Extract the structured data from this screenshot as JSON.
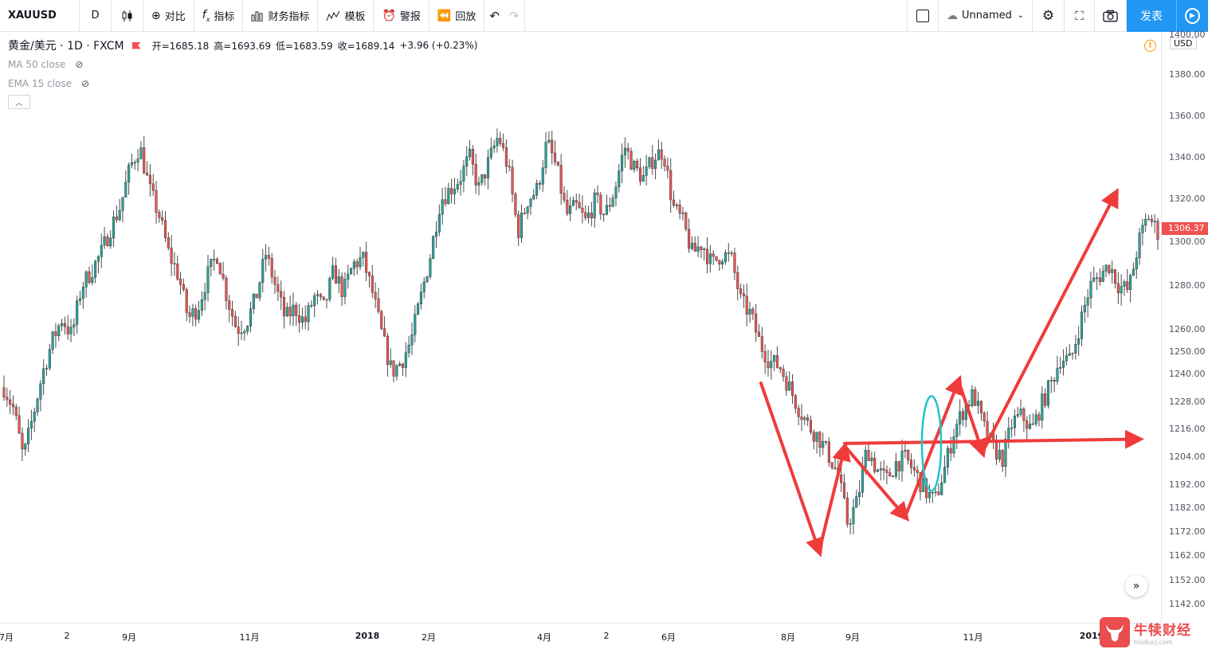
{
  "toolbar": {
    "symbol": "XAUUSD",
    "interval": "D",
    "compare": "对比",
    "indicators": "指标",
    "financials": "财务指标",
    "templates": "模板",
    "alerts": "警报",
    "replay": "回放",
    "layout_name": "Unnamed",
    "publish": "发表"
  },
  "legend": {
    "title": "黄金/美元 · 1D · FXCM",
    "open": "开=1685.18",
    "high": "高=1693.69",
    "low": "低=1683.59",
    "close": "收=1689.14",
    "change": "+3.96 (+0.23%)",
    "indicator_1": "MA 50 close",
    "indicator_2": "EMA 15 close"
  },
  "price_axis": {
    "currency": "USD",
    "ticks": [
      "1400.00",
      "1380.00",
      "1360.00",
      "1340.00",
      "1320.00",
      "1300.00",
      "1280.00",
      "1260.00",
      "1250.00",
      "1240.00",
      "1228.00",
      "1216.00",
      "1204.00",
      "1192.00",
      "1182.00",
      "1172.00",
      "1162.00",
      "1152.00",
      "1142.00"
    ],
    "current_price": "1306.37"
  },
  "time_axis": {
    "labels": [
      {
        "text": "7月",
        "bold": false
      },
      {
        "text": "2",
        "bold": false
      },
      {
        "text": "9月",
        "bold": false
      },
      {
        "text": "11月",
        "bold": false
      },
      {
        "text": "2018",
        "bold": true
      },
      {
        "text": "2月",
        "bold": false
      },
      {
        "text": "4月",
        "bold": false
      },
      {
        "text": "2",
        "bold": false
      },
      {
        "text": "6月",
        "bold": false
      },
      {
        "text": "8月",
        "bold": false
      },
      {
        "text": "9月",
        "bold": false
      },
      {
        "text": "11月",
        "bold": false
      },
      {
        "text": "2019",
        "bold": true
      }
    ]
  },
  "watermark": {
    "name": "牛犊财经",
    "sub": "niuducj.com"
  },
  "chart_data": {
    "type": "candlestick",
    "symbol": "XAUUSD",
    "ylim": [
      1138,
      1402
    ],
    "up_color": "#26a69a",
    "down_color": "#ef5350",
    "anchors": [
      1238,
      1228,
      1205,
      1225,
      1245,
      1260,
      1270,
      1262,
      1285,
      1292,
      1300,
      1312,
      1322,
      1340,
      1350,
      1330,
      1318,
      1300,
      1290,
      1270,
      1275,
      1290,
      1300,
      1280,
      1265,
      1268,
      1280,
      1300,
      1285,
      1270,
      1275,
      1268,
      1280,
      1275,
      1292,
      1282,
      1295,
      1298,
      1282,
      1262,
      1245,
      1250,
      1260,
      1280,
      1300,
      1325,
      1330,
      1335,
      1345,
      1330,
      1343,
      1355,
      1340,
      1310,
      1325,
      1330,
      1352,
      1340,
      1318,
      1322,
      1315,
      1325,
      1318,
      1330,
      1350,
      1340,
      1335,
      1345,
      1348,
      1322,
      1315,
      1300,
      1305,
      1295,
      1300,
      1298,
      1278,
      1272,
      1258,
      1250,
      1248,
      1238,
      1228,
      1220,
      1215,
      1207,
      1198,
      1175,
      1185,
      1210,
      1200,
      1195,
      1203,
      1205,
      1198,
      1190,
      1185,
      1200,
      1218,
      1228,
      1235,
      1220,
      1210,
      1205,
      1222,
      1225,
      1218,
      1230,
      1240,
      1252,
      1250,
      1268,
      1285,
      1290,
      1295,
      1285,
      1283,
      1305,
      1318,
      1310
    ],
    "annotations": {
      "arrow_color": "#f03b3b",
      "ellipse_color": "#20c4c8",
      "arrows": [
        {
          "from": [
            955,
            1240
          ],
          "to": [
            1028,
            1162
          ]
        },
        {
          "from": [
            1028,
            1162
          ],
          "to": [
            1060,
            1210
          ]
        },
        {
          "from": [
            1062,
            1210
          ],
          "to": [
            1136,
            1178
          ]
        },
        {
          "from": [
            1136,
            1178
          ],
          "to": [
            1203,
            1241
          ]
        },
        {
          "from": [
            1203,
            1241
          ],
          "to": [
            1233,
            1208
          ]
        },
        {
          "from": [
            1233,
            1208
          ],
          "to": [
            1400,
            1328
          ]
        },
        {
          "from": [
            1060,
            1212
          ],
          "to": [
            1428,
            1214
          ]
        }
      ],
      "ellipse": {
        "x": 1169,
        "price": 1212,
        "rx": 12,
        "ry_price": 22
      }
    }
  }
}
